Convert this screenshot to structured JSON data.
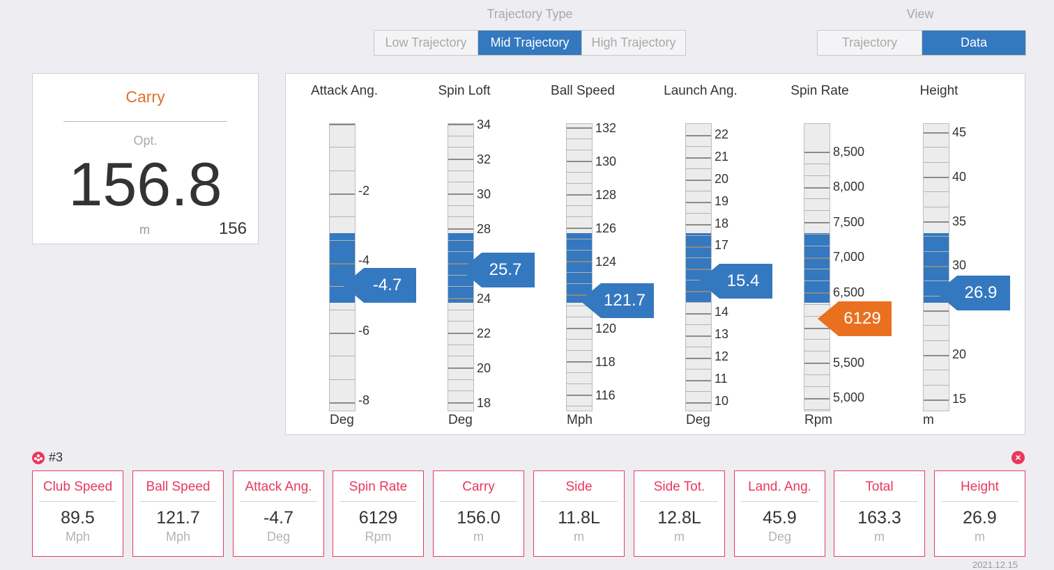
{
  "trajectory_type": {
    "title": "Trajectory Type",
    "options": [
      "Low Trajectory",
      "Mid Trajectory",
      "High Trajectory"
    ],
    "selected": "Mid Trajectory"
  },
  "view": {
    "title": "View",
    "options": [
      "Trajectory",
      "Data"
    ],
    "selected": "Data"
  },
  "carry": {
    "title": "Carry",
    "opt_label": "Opt.",
    "value": "156.8",
    "unit": "m",
    "actual": "156"
  },
  "gauges": [
    {
      "title": "Attack Ang.",
      "unit": "Deg",
      "value": "-4.7",
      "status": "in-range",
      "labels": [
        {
          "text": "-2"
        },
        {
          "text": "-4"
        },
        {
          "text": "-6"
        },
        {
          "text": "-8"
        }
      ]
    },
    {
      "title": "Spin Loft",
      "unit": "Deg",
      "value": "25.7",
      "status": "in-range",
      "labels": [
        {
          "text": "34"
        },
        {
          "text": "32"
        },
        {
          "text": "30"
        },
        {
          "text": "28"
        },
        {
          "text": "24"
        },
        {
          "text": "22"
        },
        {
          "text": "20"
        },
        {
          "text": "18"
        }
      ]
    },
    {
      "title": "Ball Speed",
      "unit": "Mph",
      "value": "121.7",
      "status": "in-range",
      "labels": [
        {
          "text": "132"
        },
        {
          "text": "130"
        },
        {
          "text": "128"
        },
        {
          "text": "126"
        },
        {
          "text": "124"
        },
        {
          "text": "120"
        },
        {
          "text": "118"
        },
        {
          "text": "116"
        }
      ]
    },
    {
      "title": "Launch Ang.",
      "unit": "Deg",
      "value": "15.4",
      "status": "in-range",
      "labels": [
        {
          "text": "22"
        },
        {
          "text": "21"
        },
        {
          "text": "20"
        },
        {
          "text": "19"
        },
        {
          "text": "18"
        },
        {
          "text": "17"
        },
        {
          "text": "14"
        },
        {
          "text": "13"
        },
        {
          "text": "12"
        },
        {
          "text": "11"
        },
        {
          "text": "10"
        }
      ]
    },
    {
      "title": "Spin Rate",
      "unit": "Rpm",
      "value": "6129",
      "status": "below-range",
      "labels": [
        {
          "text": "8,500"
        },
        {
          "text": "8,000"
        },
        {
          "text": "7,500"
        },
        {
          "text": "7,000"
        },
        {
          "text": "6,500"
        },
        {
          "text": "5,500"
        },
        {
          "text": "5,000"
        }
      ]
    },
    {
      "title": "Height",
      "unit": "m",
      "value": "26.9",
      "status": "in-range",
      "labels": [
        {
          "text": "45"
        },
        {
          "text": "40"
        },
        {
          "text": "35"
        },
        {
          "text": "30"
        },
        {
          "text": "20"
        },
        {
          "text": "15"
        }
      ]
    }
  ],
  "shot": {
    "label": "#3",
    "close_icon": "close-icon"
  },
  "stats": [
    {
      "title": "Club Speed",
      "value": "89.5",
      "unit": "Mph"
    },
    {
      "title": "Ball Speed",
      "value": "121.7",
      "unit": "Mph"
    },
    {
      "title": "Attack Ang.",
      "value": "-4.7",
      "unit": "Deg"
    },
    {
      "title": "Spin Rate",
      "value": "6129",
      "unit": "Rpm"
    },
    {
      "title": "Carry",
      "value": "156.0",
      "unit": "m"
    },
    {
      "title": "Side",
      "value": "11.8L",
      "unit": "m"
    },
    {
      "title": "Side Tot.",
      "value": "12.8L",
      "unit": "m"
    },
    {
      "title": "Land. Ang.",
      "value": "45.9",
      "unit": "Deg"
    },
    {
      "title": "Total",
      "value": "163.3",
      "unit": "m"
    },
    {
      "title": "Height",
      "value": "26.9",
      "unit": "m"
    }
  ],
  "date": "2021.12.15",
  "colors": {
    "accent": "#3478c0",
    "carry_title": "#e0702c",
    "warning": "#e8701f",
    "stat_border": "#e8385e"
  }
}
